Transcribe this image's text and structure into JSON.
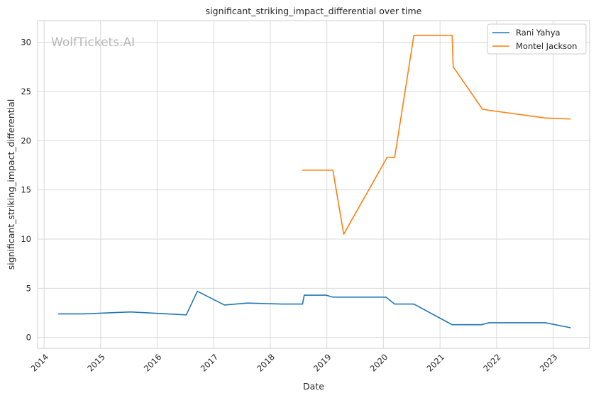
{
  "chart_data": {
    "type": "line",
    "title": "significant_striking_impact_differential over time",
    "xlabel": "Date",
    "ylabel": "significant_striking_impact_differential",
    "watermark": "WolfTickets.AI",
    "x_ticks": [
      "2014",
      "2015",
      "2016",
      "2017",
      "2018",
      "2019",
      "2020",
      "2021",
      "2022",
      "2023"
    ],
    "y_ticks": [
      "0",
      "5",
      "10",
      "15",
      "20",
      "25",
      "30"
    ],
    "xlim": [
      "2013-11-20",
      "2023-08-25"
    ],
    "ylim": [
      -1.1,
      32.2
    ],
    "grid": true,
    "legend_position": "top-right",
    "colors": {
      "Rani Yahya": "#1f77b4",
      "Montel Jackson": "#ff7f0e"
    },
    "series": [
      {
        "name": "Rani Yahya",
        "color": "#1f77b4",
        "points": [
          [
            "2014-04-05",
            2.4
          ],
          [
            "2014-09-13",
            2.4
          ],
          [
            "2015-07-12",
            2.6
          ],
          [
            "2016-07-07",
            2.3
          ],
          [
            "2016-09-17",
            4.7
          ],
          [
            "2017-03-11",
            3.3
          ],
          [
            "2017-08-05",
            3.5
          ],
          [
            "2018-03-17",
            3.4
          ],
          [
            "2018-07-28",
            3.4
          ],
          [
            "2018-08-08",
            4.3
          ],
          [
            "2018-12-29",
            4.3
          ],
          [
            "2019-02-09",
            4.1
          ],
          [
            "2020-01-18",
            4.1
          ],
          [
            "2020-03-14",
            3.4
          ],
          [
            "2020-07-16",
            3.4
          ],
          [
            "2021-03-20",
            1.3
          ],
          [
            "2021-09-25",
            1.3
          ],
          [
            "2021-11-13",
            1.5
          ],
          [
            "2022-11-12",
            1.5
          ],
          [
            "2023-04-22",
            1.0
          ]
        ]
      },
      {
        "name": "Montel Jackson",
        "color": "#ff7f0e",
        "points": [
          [
            "2018-07-28",
            17.0
          ],
          [
            "2019-02-09",
            17.0
          ],
          [
            "2019-04-20",
            10.5
          ],
          [
            "2020-01-25",
            18.3
          ],
          [
            "2020-03-14",
            18.3
          ],
          [
            "2020-07-16",
            30.7
          ],
          [
            "2021-03-20",
            30.7
          ],
          [
            "2021-03-27",
            27.5
          ],
          [
            "2021-10-02",
            23.2
          ],
          [
            "2021-11-06",
            23.1
          ],
          [
            "2022-11-12",
            22.3
          ],
          [
            "2023-04-22",
            22.2
          ]
        ]
      }
    ]
  }
}
